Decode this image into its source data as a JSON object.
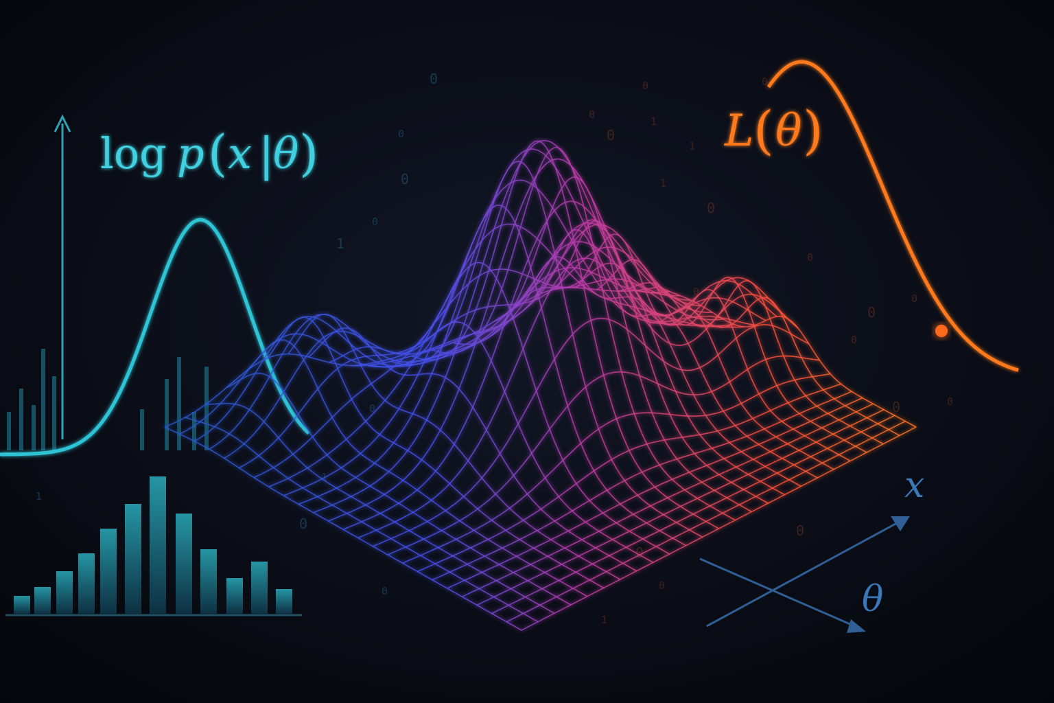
{
  "labels": {
    "left_equation": {
      "log": "log",
      "p": "p",
      "open": "(",
      "x": "x",
      "bar": "|",
      "theta": "θ",
      "close": ")"
    },
    "right_equation": {
      "L": "L",
      "open": "(",
      "theta": "θ",
      "close": ")"
    },
    "axis_x": "x",
    "axis_theta": "θ"
  },
  "digits": [
    "0",
    "0",
    "0",
    "1",
    "0",
    "1",
    "0",
    "0",
    "1",
    "0",
    "1",
    "0",
    "0",
    "0",
    "0",
    "0",
    "0",
    "1",
    "0",
    "0",
    "0",
    "0",
    "1",
    "1",
    "0",
    "0",
    "0",
    "0",
    "0"
  ],
  "colors": {
    "background": "#07090f",
    "teal": "#2ec4d6",
    "orange": "#ff7a1f",
    "surface_blue": "#2f5fe0",
    "surface_magenta": "#c0339a",
    "surface_orange": "#ff5a2a",
    "axis_blue": "#3a6fa8"
  }
}
